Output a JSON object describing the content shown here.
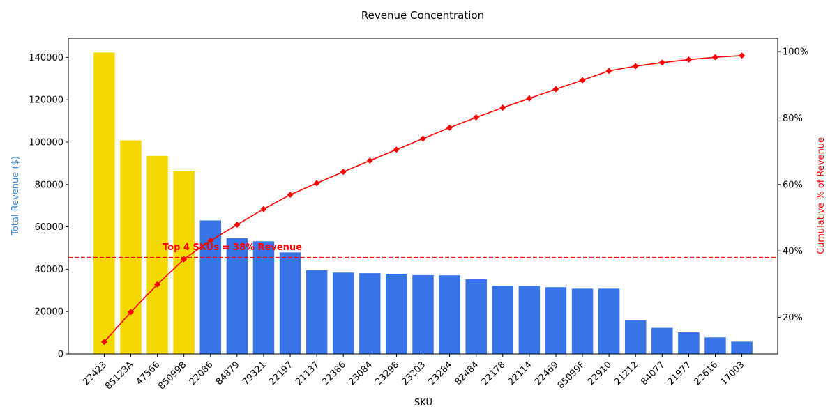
{
  "chart_data": {
    "type": "bar",
    "title": "Revenue Concentration",
    "xlabel": "SKU",
    "ylabel_left": "Total Revenue ($)",
    "ylabel_right": "Cumulative % of Revenue",
    "categories": [
      "22423",
      "85123A",
      "47566",
      "85099B",
      "22086",
      "84879",
      "79321",
      "22197",
      "21137",
      "22386",
      "23084",
      "23298",
      "23203",
      "23284",
      "82484",
      "22178",
      "22114",
      "22469",
      "85099F",
      "22910",
      "21212",
      "84077",
      "21977",
      "22616",
      "17003"
    ],
    "series": [
      {
        "kind": "bar",
        "values": [
          142300,
          100800,
          93500,
          86200,
          63000,
          54600,
          53200,
          47900,
          39500,
          38400,
          38100,
          37800,
          37200,
          37100,
          35200,
          32200,
          32100,
          31500,
          30800,
          30800,
          15800,
          12300,
          10200,
          7800,
          5800
        ],
        "highlight_count": 4,
        "highlight_color": "#f5d800",
        "color": "#3674e8"
      },
      {
        "kind": "line",
        "axis": "right",
        "values": [
          12.6,
          21.6,
          29.9,
          37.5,
          43.1,
          47.9,
          52.6,
          56.9,
          60.4,
          63.8,
          67.2,
          70.5,
          73.8,
          77.1,
          80.2,
          83.1,
          85.9,
          88.7,
          91.4,
          94.2,
          95.6,
          96.7,
          97.6,
          98.3,
          98.8
        ],
        "color": "#ff0000",
        "marker": "diamond"
      }
    ],
    "ylim_left": [
      0,
      149000
    ],
    "yticks_left": [
      "0",
      "20000",
      "40000",
      "60000",
      "80000",
      "100000",
      "120000",
      "140000"
    ],
    "ylim_right": [
      9,
      104
    ],
    "yticks_right": [
      "20%",
      "40%",
      "60%",
      "80%",
      "100%"
    ],
    "threshold": {
      "value": 38,
      "axis": "right",
      "color": "#ff0000",
      "style": "dashed"
    },
    "annotation": {
      "text": "Top 4 SKUs = 38% Revenue",
      "color": "#ff0000"
    },
    "colors": {
      "left_axis_label": "#3a7fc1",
      "right_axis_label": "#ff0000"
    }
  }
}
